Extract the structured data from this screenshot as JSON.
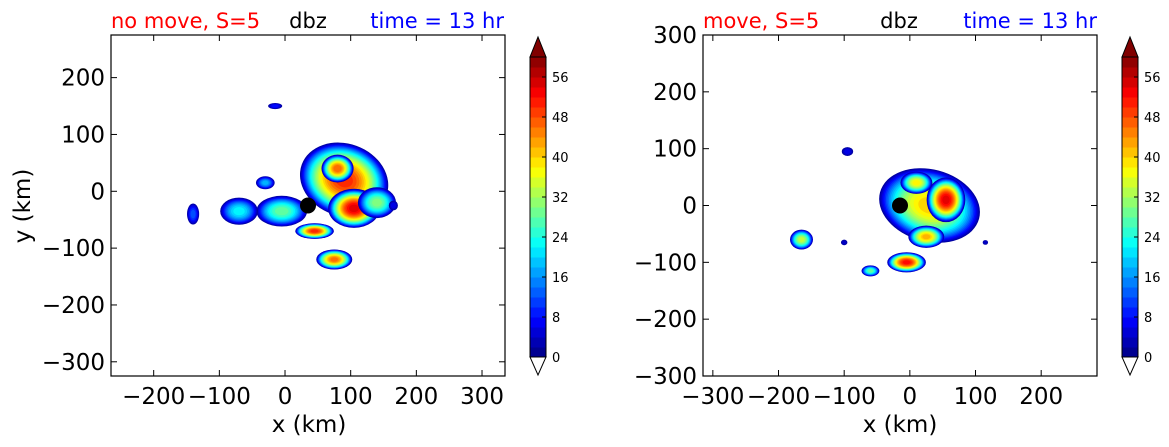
{
  "chart_data": [
    {
      "type": "heatmap",
      "title_left": "no move, S=5",
      "title_center": "dbz",
      "title_right": "time = 13 hr",
      "xlabel": "x (km)",
      "ylabel": "y (km)",
      "xlim": [
        -265,
        335
      ],
      "ylim": [
        -325,
        275
      ],
      "xticks": [
        "−200",
        "−100",
        "0",
        "100",
        "200",
        "300"
      ],
      "xtick_values": [
        -200,
        -100,
        0,
        100,
        200,
        300
      ],
      "yticks": [
        "200",
        "100",
        "0",
        "−100",
        "−200",
        "−300"
      ],
      "ytick_values": [
        200,
        100,
        0,
        -100,
        -200,
        -300
      ],
      "center_marker": [
        35,
        -25
      ],
      "colorbar": {
        "min": 0,
        "max": 60,
        "ticks": [
          "0",
          "8",
          "16",
          "24",
          "32",
          "40",
          "48",
          "56"
        ],
        "tick_values": [
          0,
          8,
          16,
          24,
          32,
          40,
          48,
          56
        ],
        "extend": "both"
      },
      "cells": [
        {
          "x": 90,
          "y": 20,
          "rx": 70,
          "ry": 65,
          "peak": 50,
          "rot": 20
        },
        {
          "x": 105,
          "y": -30,
          "rx": 40,
          "ry": 35,
          "peak": 54,
          "rot": 0
        },
        {
          "x": 80,
          "y": 40,
          "rx": 25,
          "ry": 25,
          "peak": 47,
          "rot": 0
        },
        {
          "x": 140,
          "y": -20,
          "rx": 30,
          "ry": 28,
          "peak": 30,
          "rot": 0
        },
        {
          "x": -5,
          "y": -35,
          "rx": 40,
          "ry": 28,
          "peak": 28,
          "rot": 0
        },
        {
          "x": 45,
          "y": -70,
          "rx": 30,
          "ry": 14,
          "peak": 50,
          "rot": 0
        },
        {
          "x": 75,
          "y": -120,
          "rx": 28,
          "ry": 18,
          "peak": 46,
          "rot": 0
        },
        {
          "x": -70,
          "y": -35,
          "rx": 30,
          "ry": 25,
          "peak": 22,
          "rot": 0
        },
        {
          "x": -30,
          "y": 15,
          "rx": 15,
          "ry": 12,
          "peak": 18,
          "rot": 0
        },
        {
          "x": -140,
          "y": -40,
          "rx": 10,
          "ry": 20,
          "peak": 12,
          "rot": 0
        },
        {
          "x": -15,
          "y": 150,
          "rx": 12,
          "ry": 6,
          "peak": 8,
          "rot": 0
        },
        {
          "x": 165,
          "y": -25,
          "rx": 8,
          "ry": 10,
          "peak": 6,
          "rot": 0
        }
      ]
    },
    {
      "type": "heatmap",
      "title_left": "move, S=5",
      "title_center": "dbz",
      "title_right": "time = 13 hr",
      "xlabel": "x (km)",
      "ylabel": "",
      "xlim": [
        -315,
        285
      ],
      "ylim": [
        -300,
        300
      ],
      "xticks": [
        "−300",
        "−200",
        "−100",
        "0",
        "100",
        "200"
      ],
      "xtick_values": [
        -300,
        -200,
        -100,
        0,
        100,
        200
      ],
      "yticks": [
        "300",
        "200",
        "100",
        "0",
        "−100",
        "−200",
        "−300"
      ],
      "ytick_values": [
        300,
        200,
        100,
        0,
        -100,
        -200,
        -300
      ],
      "center_marker": [
        -15,
        0
      ],
      "colorbar": {
        "min": 0,
        "max": 60,
        "ticks": [
          "0",
          "8",
          "16",
          "24",
          "32",
          "40",
          "48",
          "56"
        ],
        "tick_values": [
          0,
          8,
          16,
          24,
          32,
          40,
          48,
          56
        ],
        "extend": "both"
      },
      "cells": [
        {
          "x": 30,
          "y": 0,
          "rx": 80,
          "ry": 65,
          "peak": 40,
          "rot": 15
        },
        {
          "x": 55,
          "y": 10,
          "rx": 30,
          "ry": 40,
          "peak": 54,
          "rot": 0
        },
        {
          "x": 10,
          "y": 40,
          "rx": 25,
          "ry": 20,
          "peak": 38,
          "rot": 0
        },
        {
          "x": 25,
          "y": -55,
          "rx": 28,
          "ry": 20,
          "peak": 42,
          "rot": 0
        },
        {
          "x": -5,
          "y": -100,
          "rx": 30,
          "ry": 18,
          "peak": 52,
          "rot": 0
        },
        {
          "x": -165,
          "y": -60,
          "rx": 18,
          "ry": 18,
          "peak": 34,
          "rot": 0
        },
        {
          "x": -60,
          "y": -115,
          "rx": 14,
          "ry": 10,
          "peak": 28,
          "rot": 0
        },
        {
          "x": -95,
          "y": 95,
          "rx": 10,
          "ry": 9,
          "peak": 6,
          "rot": 0
        },
        {
          "x": -100,
          "y": -65,
          "rx": 6,
          "ry": 6,
          "peak": 4,
          "rot": 0
        },
        {
          "x": 115,
          "y": -65,
          "rx": 5,
          "ry": 5,
          "peak": 4,
          "rot": 0
        }
      ]
    }
  ]
}
